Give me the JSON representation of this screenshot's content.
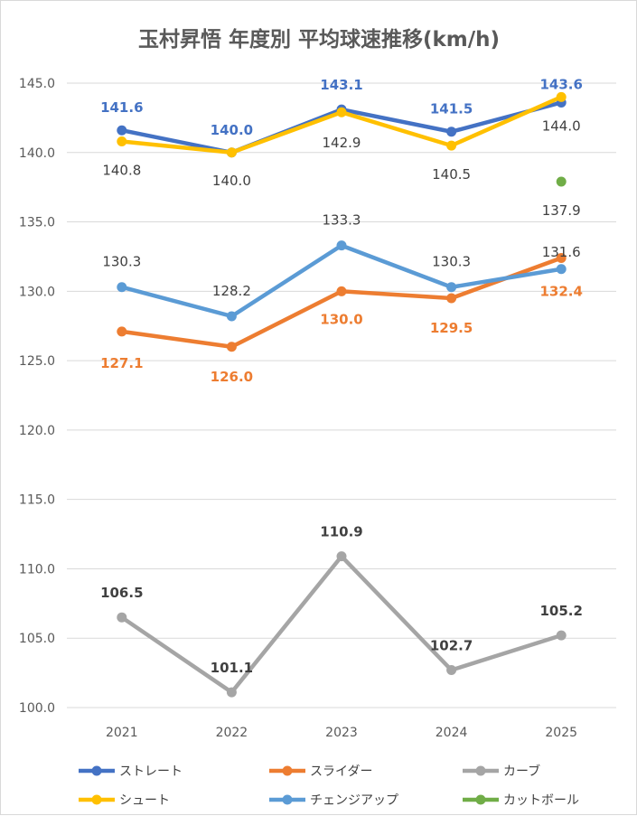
{
  "chart_data": {
    "type": "line",
    "title": "玉村昇悟 年度別 平均球速推移(km/h)",
    "xlabel": "",
    "ylabel": "",
    "categories": [
      "2021",
      "2022",
      "2023",
      "2024",
      "2025"
    ],
    "ylim": [
      100,
      145
    ],
    "yticks": [
      "100.0",
      "105.0",
      "110.0",
      "115.0",
      "120.0",
      "125.0",
      "130.0",
      "135.0",
      "140.0",
      "145.0"
    ],
    "ytick_values": [
      100,
      105,
      110,
      115,
      120,
      125,
      130,
      135,
      140,
      145
    ],
    "grid": true,
    "legend_position": "bottom",
    "series": [
      {
        "name": "ストレート",
        "color": "#4472c4",
        "values": [
          141.6,
          140.0,
          143.1,
          141.5,
          143.6
        ],
        "labels": [
          "141.6",
          "140.0",
          "143.1",
          "141.5",
          "143.6"
        ],
        "label_color": "#4472c4",
        "label_bold": true
      },
      {
        "name": "スライダー",
        "color": "#ed7d31",
        "values": [
          127.1,
          126.0,
          130.0,
          129.5,
          132.4
        ],
        "labels": [
          "127.1",
          "126.0",
          "130.0",
          "129.5",
          "132.4"
        ],
        "label_color": "#ed7d31",
        "label_bold": true
      },
      {
        "name": "カーブ",
        "color": "#a5a5a5",
        "values": [
          106.5,
          101.1,
          110.9,
          102.7,
          105.2
        ],
        "labels": [
          "106.5",
          "101.1",
          "110.9",
          "102.7",
          "105.2"
        ],
        "label_color": "#404040",
        "label_bold": true
      },
      {
        "name": "シュート",
        "color": "#ffc000",
        "values": [
          140.8,
          140.0,
          142.9,
          140.5,
          144.0
        ],
        "labels": [
          "140.8",
          "140.0",
          "142.9",
          "140.5",
          "144.0"
        ],
        "label_color": "#404040",
        "label_bold": false
      },
      {
        "name": "チェンジアップ",
        "color": "#5b9bd5",
        "values": [
          130.3,
          128.2,
          133.3,
          130.3,
          131.6
        ],
        "labels": [
          "130.3",
          "128.2",
          "133.3",
          "130.3",
          "131.6"
        ],
        "label_color": "#404040",
        "label_bold": false
      },
      {
        "name": "カットボール",
        "color": "#70ad47",
        "values": [
          null,
          null,
          null,
          null,
          137.9
        ],
        "labels": [
          null,
          null,
          null,
          null,
          "137.9"
        ],
        "label_color": "#404040",
        "label_bold": false
      }
    ]
  }
}
